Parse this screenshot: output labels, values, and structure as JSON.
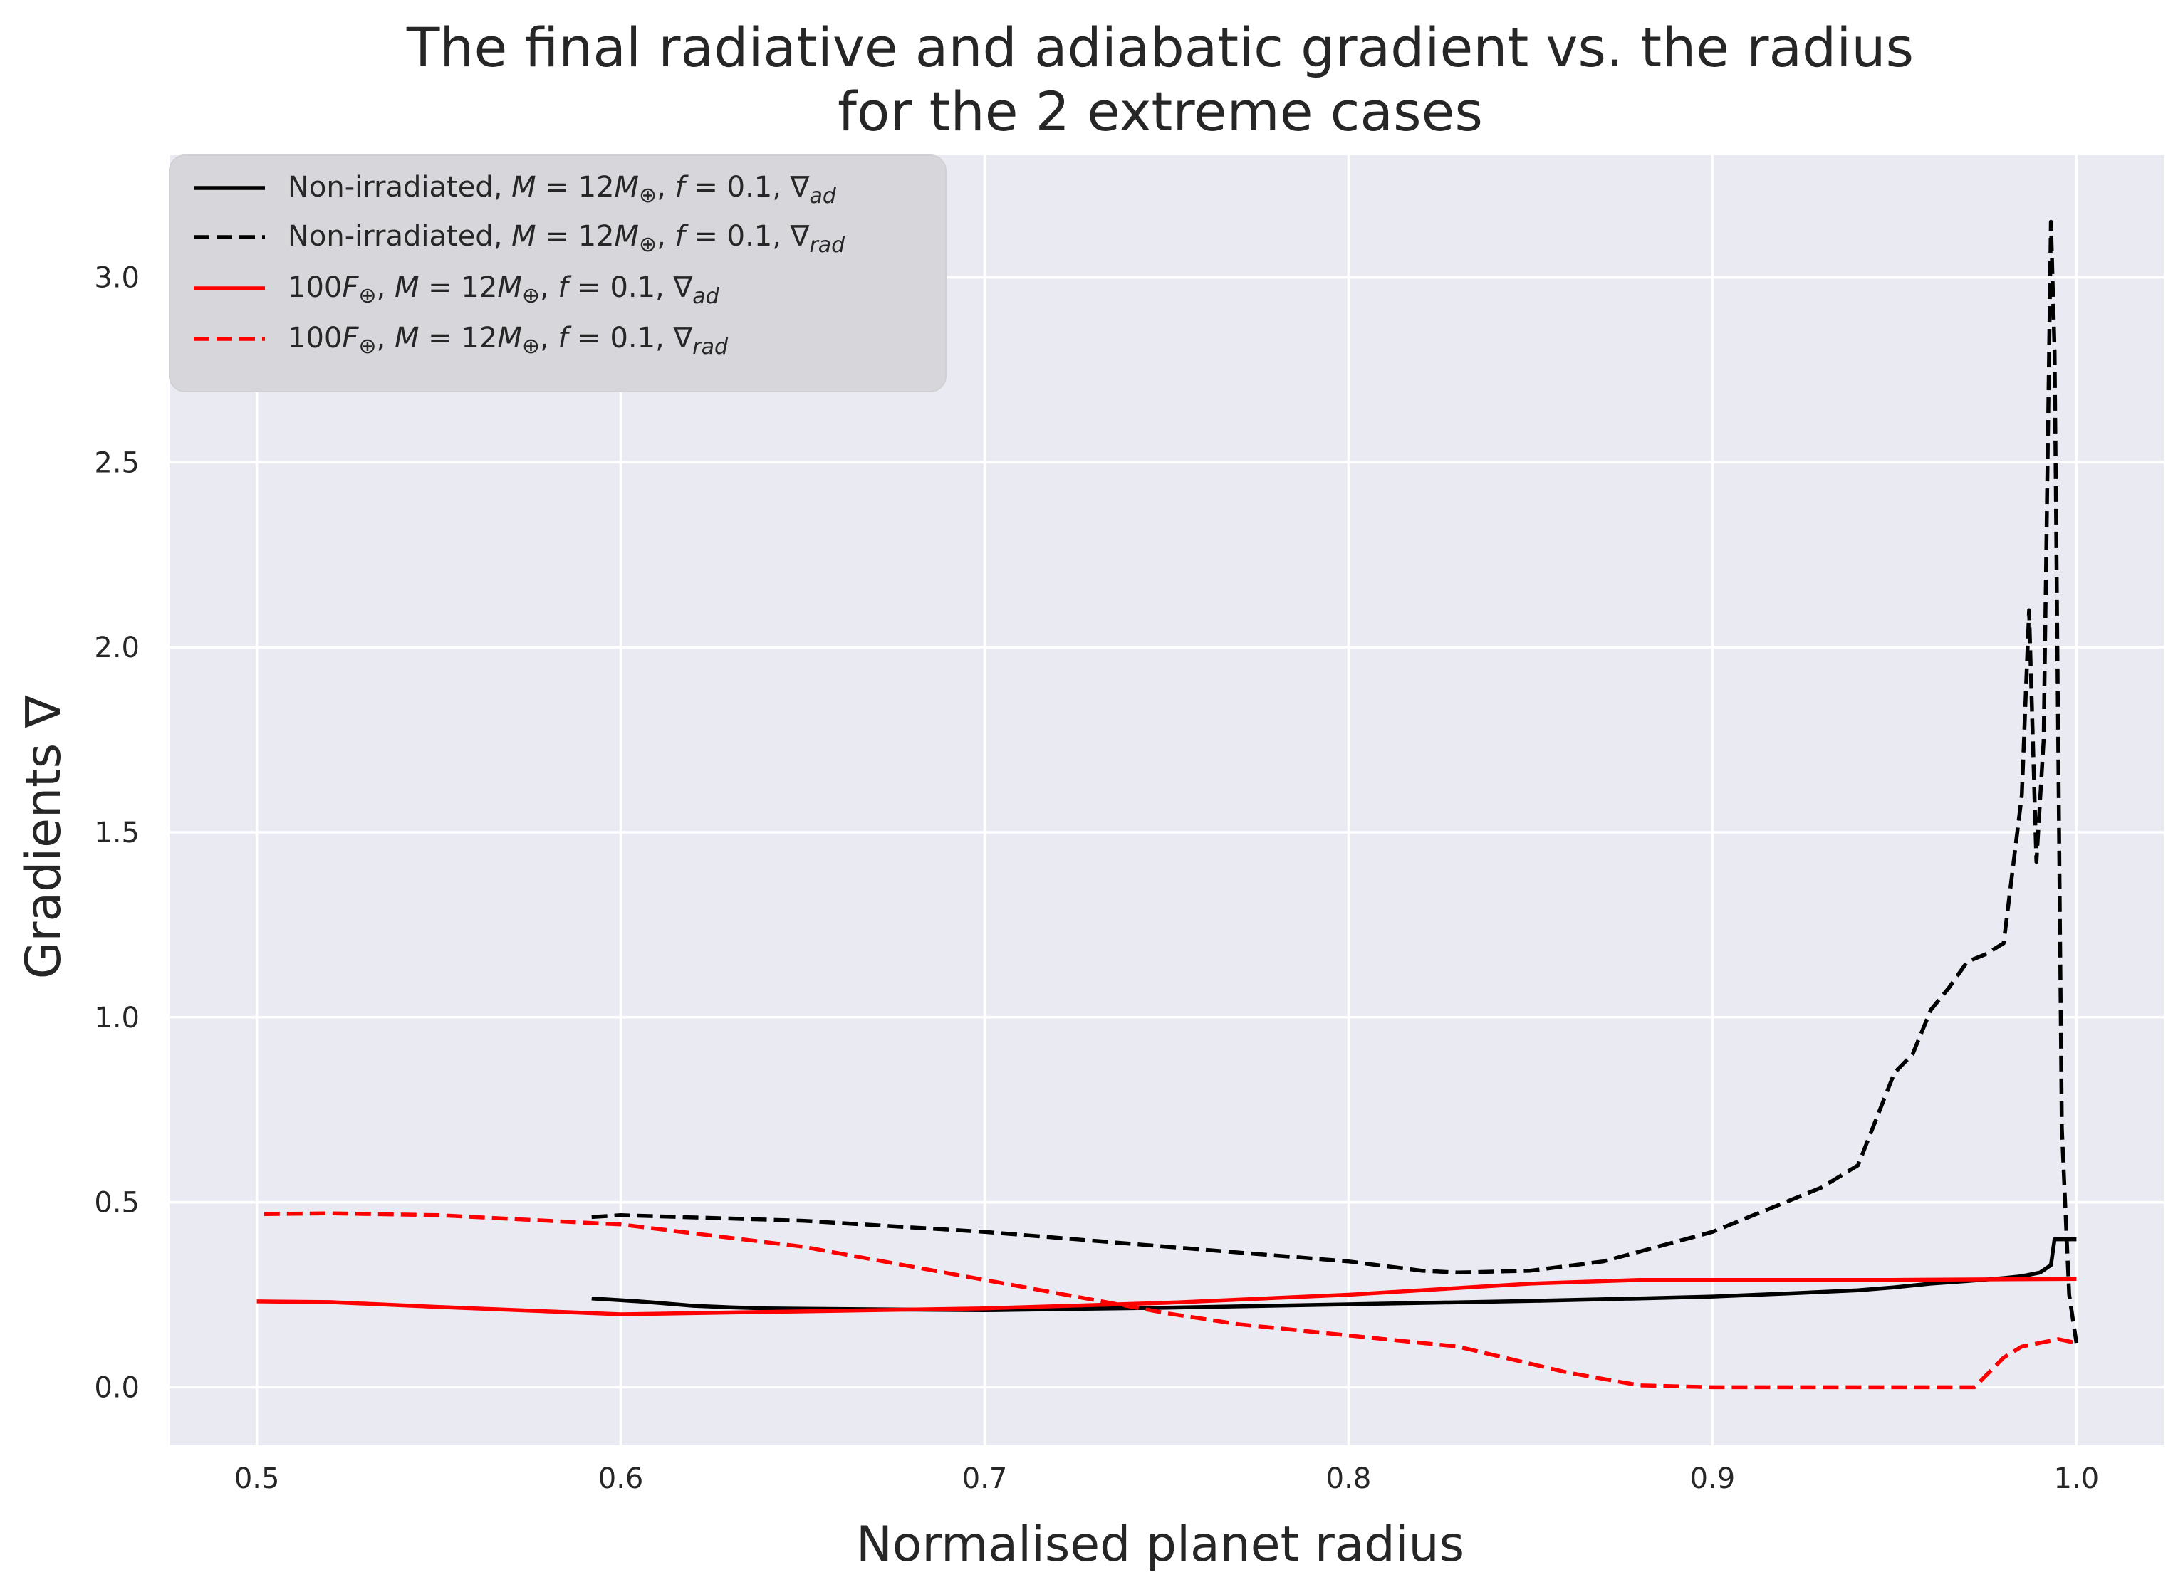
{
  "chart_data": {
    "type": "line",
    "title_lines": [
      "The final radiative and adiabatic gradient vs. the radius",
      "for the 2 extreme cases"
    ],
    "xlabel": "Normalised planet radius",
    "ylabel": "Gradients ∇",
    "xlim": [
      0.476,
      1.024
    ],
    "ylim": [
      -0.157,
      3.33
    ],
    "xticks": [
      0.5,
      0.6,
      0.7,
      0.8,
      0.9,
      1.0
    ],
    "xtick_labels": [
      "0.5",
      "0.6",
      "0.7",
      "0.8",
      "0.9",
      "1.0"
    ],
    "yticks": [
      0.0,
      0.5,
      1.0,
      1.5,
      2.0,
      2.5,
      3.0
    ],
    "ytick_labels": [
      "0.0",
      "0.5",
      "1.0",
      "1.5",
      "2.0",
      "2.5",
      "3.0"
    ],
    "grid": true,
    "legend_position": "upper-left",
    "background_color": "#eaeaf2",
    "grid_color": "#ffffff",
    "series": [
      {
        "name": "Non-irradiated, M = 12M⊕, f = 0.1, ∇ad",
        "legend_parts": {
          "lead": "Non-irradiated, ",
          "f": "0.1",
          "sym": "∇",
          "sub": "ad"
        },
        "color": "#000000",
        "dash": "solid",
        "x": [
          0.592,
          0.6,
          0.605,
          0.61,
          0.62,
          0.63,
          0.64,
          0.65,
          0.7,
          0.75,
          0.8,
          0.85,
          0.88,
          0.9,
          0.92,
          0.94,
          0.95,
          0.96,
          0.97,
          0.98,
          0.985,
          0.99,
          0.993,
          0.994,
          1.0
        ],
        "y": [
          0.24,
          0.235,
          0.232,
          0.228,
          0.22,
          0.216,
          0.213,
          0.212,
          0.208,
          0.215,
          0.224,
          0.233,
          0.24,
          0.245,
          0.253,
          0.262,
          0.27,
          0.28,
          0.287,
          0.295,
          0.3,
          0.31,
          0.33,
          0.4,
          0.4
        ]
      },
      {
        "name": "Non-irradiated, M = 12M⊕, f = 0.1, ∇rad",
        "legend_parts": {
          "lead": "Non-irradiated, ",
          "f": "0.1",
          "sym": "∇",
          "sub": "rad"
        },
        "color": "#000000",
        "dash": "dashed",
        "x": [
          0.592,
          0.6,
          0.65,
          0.7,
          0.75,
          0.8,
          0.82,
          0.83,
          0.85,
          0.87,
          0.9,
          0.92,
          0.93,
          0.94,
          0.95,
          0.955,
          0.96,
          0.965,
          0.97,
          0.975,
          0.98,
          0.985,
          0.987,
          0.989,
          0.991,
          0.993,
          0.994,
          0.996,
          0.998,
          1.0
        ],
        "y": [
          0.46,
          0.465,
          0.45,
          0.42,
          0.38,
          0.34,
          0.315,
          0.31,
          0.315,
          0.34,
          0.42,
          0.5,
          0.54,
          0.6,
          0.85,
          0.9,
          1.02,
          1.08,
          1.15,
          1.17,
          1.2,
          1.6,
          2.1,
          1.42,
          1.75,
          3.15,
          2.8,
          0.7,
          0.25,
          0.12
        ]
      },
      {
        "name": "100F⊕, M = 12M⊕, f = 0.1, ∇ad",
        "legend_parts": {
          "lead": "100",
          "f": "0.1",
          "sym": "∇",
          "sub": "ad"
        },
        "color": "#ff0000",
        "dash": "solid",
        "x": [
          0.5,
          0.52,
          0.55,
          0.6,
          0.65,
          0.7,
          0.75,
          0.8,
          0.85,
          0.88,
          0.9,
          0.95,
          1.0
        ],
        "y": [
          0.232,
          0.23,
          0.217,
          0.197,
          0.205,
          0.213,
          0.228,
          0.25,
          0.28,
          0.29,
          0.29,
          0.29,
          0.293
        ]
      },
      {
        "name": "100F⊕, M = 12M⊕, f = 0.1, ∇rad",
        "legend_parts": {
          "lead": "100",
          "f": "0.1",
          "sym": "∇",
          "sub": "rad"
        },
        "color": "#ff0000",
        "dash": "dashed",
        "x": [
          0.502,
          0.52,
          0.55,
          0.6,
          0.65,
          0.7,
          0.75,
          0.77,
          0.8,
          0.83,
          0.86,
          0.88,
          0.9,
          0.92,
          0.94,
          0.96,
          0.972,
          0.976,
          0.98,
          0.985,
          0.99,
          0.995,
          1.0
        ],
        "y": [
          0.468,
          0.47,
          0.465,
          0.44,
          0.38,
          0.29,
          0.2,
          0.17,
          0.14,
          0.11,
          0.04,
          0.005,
          0.0,
          0.0,
          0.0,
          0.0,
          0.0,
          0.04,
          0.08,
          0.11,
          0.12,
          0.13,
          0.12
        ]
      }
    ]
  }
}
